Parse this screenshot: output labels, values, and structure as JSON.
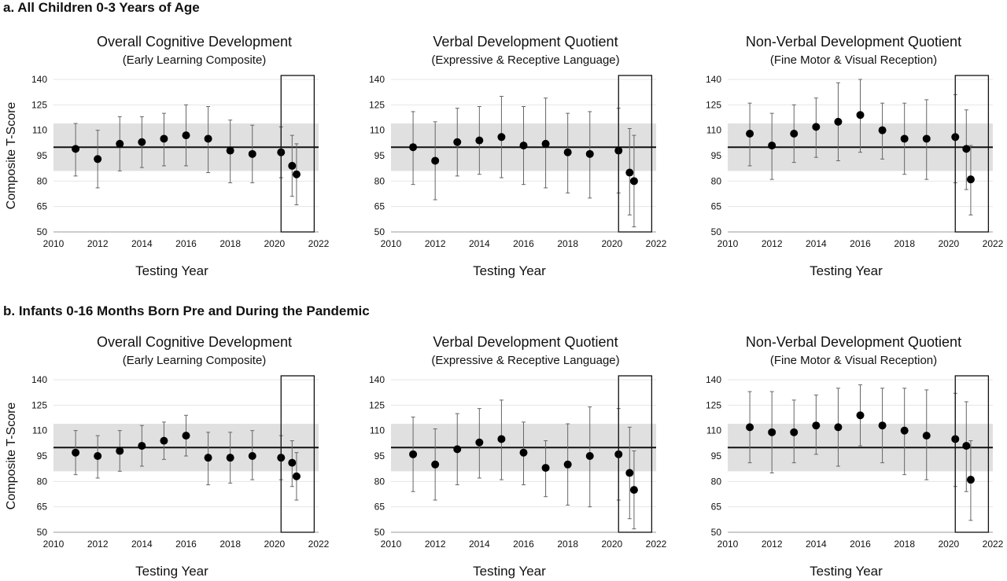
{
  "sections": [
    {
      "heading": "a. All Children 0-3 Years of Age",
      "ylabel": "Composite T-Score"
    },
    {
      "heading": "b. Infants 0-16 Months Born Pre and During the Pandemic",
      "ylabel": "Composite T-Score"
    }
  ],
  "colors": {
    "band": "#e0e0e0",
    "reference_line": "#111111",
    "markers": "#000000",
    "errorbars": "#666666",
    "grid": "#e6e6e6"
  },
  "chart_data": [
    {
      "type": "scatter",
      "section": 0,
      "title": "Overall Cognitive Development",
      "subtitle": "(Early Learning Composite)",
      "xlabel": "Testing Year",
      "ylabel": "Composite T-Score",
      "xlim": [
        2010,
        2022
      ],
      "ylim": [
        50,
        140
      ],
      "xticks": [
        2010,
        2012,
        2014,
        2016,
        2018,
        2020,
        2022
      ],
      "yticks": [
        50,
        65,
        80,
        95,
        110,
        125,
        140
      ],
      "reference_line": 100,
      "band": [
        86,
        114
      ],
      "highlight_x": [
        2020.3,
        2021.8
      ],
      "grid": "horizontal",
      "x": [
        2011,
        2012,
        2013,
        2014,
        2015,
        2016,
        2017,
        2018,
        2019,
        2020.3,
        2020.8,
        2021
      ],
      "y": [
        99,
        93,
        102,
        103,
        105,
        107,
        105,
        98,
        96,
        97,
        89,
        84
      ],
      "low": [
        83,
        76,
        86,
        88,
        89,
        89,
        85,
        79,
        79,
        82,
        71,
        66
      ],
      "high": [
        114,
        110,
        118,
        118,
        120,
        125,
        124,
        116,
        113,
        112,
        107,
        102
      ]
    },
    {
      "type": "scatter",
      "section": 0,
      "title": "Verbal Development Quotient",
      "subtitle": "(Expressive & Receptive Language)",
      "xlabel": "Testing Year",
      "ylabel": "",
      "xlim": [
        2010,
        2022
      ],
      "ylim": [
        50,
        140
      ],
      "xticks": [
        2010,
        2012,
        2014,
        2016,
        2018,
        2020,
        2022
      ],
      "yticks": [
        50,
        65,
        80,
        95,
        110,
        125,
        140
      ],
      "reference_line": 100,
      "band": [
        86,
        114
      ],
      "highlight_x": [
        2020.3,
        2021.8
      ],
      "grid": "horizontal",
      "x": [
        2011,
        2012,
        2013,
        2014,
        2015,
        2016,
        2017,
        2018,
        2019,
        2020.3,
        2020.8,
        2021
      ],
      "y": [
        100,
        92,
        103,
        104,
        106,
        101,
        102,
        97,
        96,
        98,
        85,
        80
      ],
      "low": [
        78,
        69,
        83,
        84,
        82,
        78,
        76,
        73,
        70,
        73,
        60,
        53
      ],
      "high": [
        121,
        115,
        123,
        124,
        130,
        124,
        129,
        120,
        121,
        123,
        111,
        107
      ]
    },
    {
      "type": "scatter",
      "section": 0,
      "title": "Non-Verbal Development Quotient",
      "subtitle": "(Fine Motor & Visual Reception)",
      "xlabel": "Testing Year",
      "ylabel": "",
      "xlim": [
        2010,
        2022
      ],
      "ylim": [
        50,
        140
      ],
      "xticks": [
        2010,
        2012,
        2014,
        2016,
        2018,
        2020,
        2022
      ],
      "yticks": [
        50,
        65,
        80,
        95,
        110,
        125,
        140
      ],
      "reference_line": 100,
      "band": [
        86,
        114
      ],
      "highlight_x": [
        2020.3,
        2021.8
      ],
      "grid": "horizontal",
      "x": [
        2011,
        2012,
        2013,
        2014,
        2015,
        2016,
        2017,
        2018,
        2019,
        2020.3,
        2020.8,
        2021
      ],
      "y": [
        108,
        101,
        108,
        112,
        115,
        119,
        110,
        105,
        105,
        106,
        99,
        81
      ],
      "low": [
        89,
        81,
        91,
        94,
        92,
        97,
        93,
        84,
        81,
        79,
        75,
        60
      ],
      "high": [
        126,
        120,
        125,
        129,
        138,
        140,
        126,
        126,
        128,
        131,
        122,
        101
      ]
    },
    {
      "type": "scatter",
      "section": 1,
      "title": "Overall Cognitive Development",
      "subtitle": "(Early Learning Composite)",
      "xlabel": "Testing Year",
      "ylabel": "Composite T-Score",
      "xlim": [
        2010,
        2022
      ],
      "ylim": [
        50,
        140
      ],
      "xticks": [
        2010,
        2012,
        2014,
        2016,
        2018,
        2020,
        2022
      ],
      "yticks": [
        50,
        65,
        80,
        95,
        110,
        125,
        140
      ],
      "reference_line": 100,
      "band": [
        86,
        114
      ],
      "highlight_x": [
        2020.3,
        2021.8
      ],
      "grid": "horizontal",
      "x": [
        2011,
        2012,
        2013,
        2014,
        2015,
        2016,
        2017,
        2018,
        2019,
        2020.3,
        2020.8,
        2021
      ],
      "y": [
        97,
        95,
        98,
        101,
        104,
        107,
        94,
        94,
        95,
        94,
        91,
        83
      ],
      "low": [
        84,
        82,
        86,
        89,
        93,
        95,
        78,
        79,
        81,
        81,
        77,
        69
      ],
      "high": [
        110,
        107,
        110,
        113,
        115,
        119,
        109,
        109,
        110,
        107,
        104,
        97
      ]
    },
    {
      "type": "scatter",
      "section": 1,
      "title": "Verbal Development Quotient",
      "subtitle": "(Expressive & Receptive Language)",
      "xlabel": "Testing Year",
      "ylabel": "",
      "xlim": [
        2010,
        2022
      ],
      "ylim": [
        50,
        140
      ],
      "xticks": [
        2010,
        2012,
        2014,
        2016,
        2018,
        2020,
        2022
      ],
      "yticks": [
        50,
        65,
        80,
        95,
        110,
        125,
        140
      ],
      "reference_line": 100,
      "band": [
        86,
        114
      ],
      "highlight_x": [
        2020.3,
        2021.8
      ],
      "grid": "horizontal",
      "x": [
        2011,
        2012,
        2013,
        2014,
        2015,
        2016,
        2017,
        2018,
        2019,
        2020.3,
        2020.8,
        2021
      ],
      "y": [
        96,
        90,
        99,
        103,
        105,
        97,
        88,
        90,
        95,
        96,
        85,
        75
      ],
      "low": [
        74,
        69,
        78,
        82,
        81,
        78,
        71,
        66,
        65,
        69,
        58,
        52
      ],
      "high": [
        118,
        111,
        120,
        123,
        128,
        115,
        104,
        114,
        124,
        123,
        112,
        98
      ]
    },
    {
      "type": "scatter",
      "section": 1,
      "title": "Non-Verbal Development Quotient",
      "subtitle": "(Fine Motor & Visual Reception)",
      "xlabel": "Testing Year",
      "ylabel": "",
      "xlim": [
        2010,
        2022
      ],
      "ylim": [
        50,
        140
      ],
      "xticks": [
        2010,
        2012,
        2014,
        2016,
        2018,
        2020,
        2022
      ],
      "yticks": [
        50,
        65,
        80,
        95,
        110,
        125,
        140
      ],
      "reference_line": 100,
      "band": [
        86,
        114
      ],
      "highlight_x": [
        2020.3,
        2021.8
      ],
      "grid": "horizontal",
      "x": [
        2011,
        2012,
        2013,
        2014,
        2015,
        2016,
        2017,
        2018,
        2019,
        2020.3,
        2020.8,
        2021
      ],
      "y": [
        112,
        109,
        109,
        113,
        112,
        119,
        113,
        110,
        107,
        105,
        101,
        81
      ],
      "low": [
        91,
        85,
        91,
        96,
        89,
        101,
        91,
        84,
        81,
        77,
        74,
        57
      ],
      "high": [
        133,
        133,
        128,
        131,
        135,
        137,
        135,
        135,
        134,
        132,
        127,
        104
      ]
    }
  ]
}
